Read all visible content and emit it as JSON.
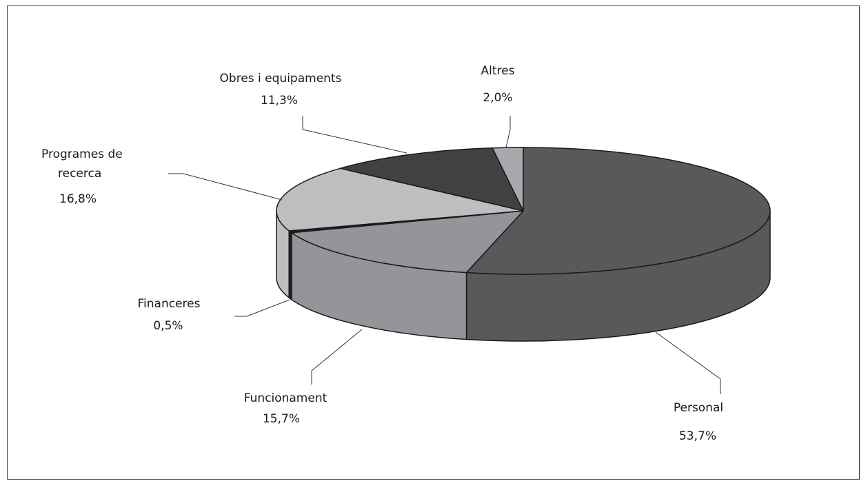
{
  "chart_data": {
    "type": "pie",
    "style": "3d",
    "slices": [
      {
        "label": "Personal",
        "value": 53.7,
        "value_label": "53,7%",
        "color": "#58595b"
      },
      {
        "label": "Funcionament",
        "value": 15.7,
        "value_label": "15,7%",
        "color": "#939598"
      },
      {
        "label": "Financeres",
        "value": 0.5,
        "value_label": "0,5%",
        "color": "#231f20"
      },
      {
        "label": "Programes de recerca",
        "label_lines": [
          "Programes de",
          "recerca"
        ],
        "value": 16.8,
        "value_label": "16,8%",
        "color": "#bcbec0"
      },
      {
        "label": "Obres i equipaments",
        "value": 11.3,
        "value_label": "11,3%",
        "color": "#414042"
      },
      {
        "label": "Altres",
        "value": 2.0,
        "value_label": "2,0%",
        "color": "#a7a9ac"
      }
    ],
    "legend": "none"
  }
}
